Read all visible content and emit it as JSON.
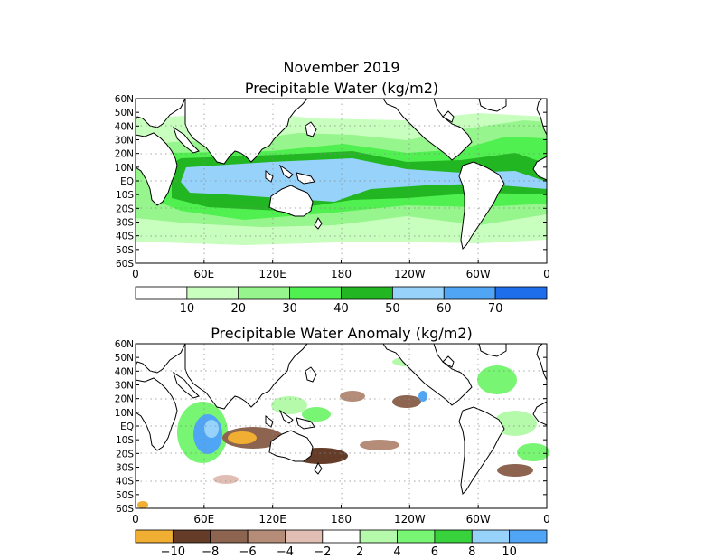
{
  "titles": {
    "line1": "November 2019",
    "line2": "Precipitable Water (kg/m2)",
    "anomaly": "Precipitable Water Anomaly (kg/m2)"
  },
  "lat_labels": [
    "60N",
    "50N",
    "40N",
    "30N",
    "20N",
    "10N",
    "EQ",
    "10S",
    "20S",
    "30S",
    "40S",
    "50S",
    "60S"
  ],
  "lon_labels": [
    "0",
    "60E",
    "120E",
    "180",
    "120W",
    "60W",
    "0"
  ],
  "colorbar_top": {
    "colors": [
      "#ffffff",
      "#c8ffbe",
      "#96f58c",
      "#50f050",
      "#23b623",
      "#96d2fa",
      "#50a5f5",
      "#1e6eeb"
    ],
    "labels": [
      "10",
      "20",
      "30",
      "40",
      "50",
      "60",
      "70"
    ]
  },
  "colorbar_bottom": {
    "colors": [
      "#f0af32",
      "#643c28",
      "#8c6450",
      "#b48c78",
      "#e1beb4",
      "#ffffff",
      "#b4faaa",
      "#78f573",
      "#37d23c",
      "#96d2fa",
      "#50a5f5"
    ],
    "labels": [
      "−10",
      "−8",
      "−6",
      "−4",
      "−2",
      "2",
      "4",
      "6",
      "8",
      "10"
    ]
  }
}
